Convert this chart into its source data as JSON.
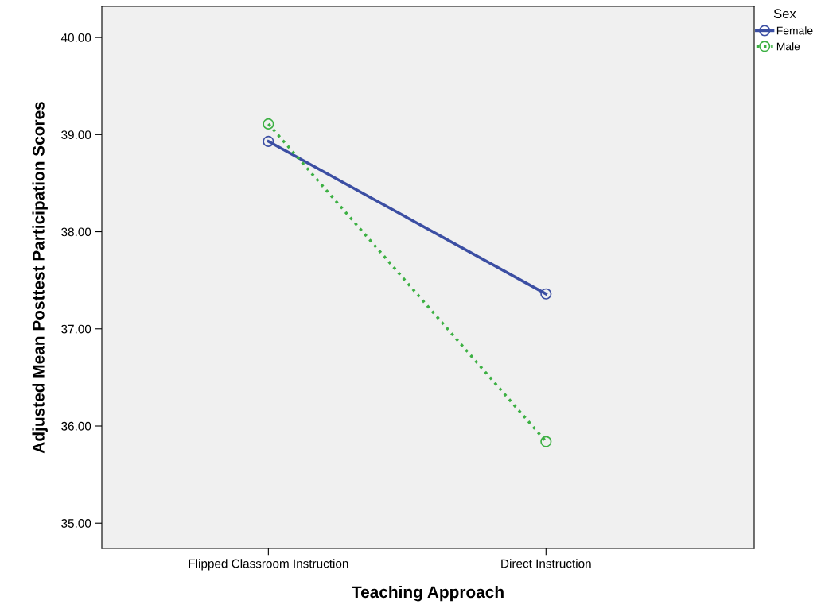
{
  "chart_data": {
    "type": "line",
    "xlabel": "Teaching Approach",
    "ylabel": "Adjusted Mean Posttest Participation Scores",
    "legend_title": "Sex",
    "categories": [
      "Flipped Classroom Instruction",
      "Direct Instruction"
    ],
    "ylim": [
      34.74,
      40.32
    ],
    "yticks": [
      {
        "value": 35,
        "label": "35.00"
      },
      {
        "value": 36,
        "label": "36.00"
      },
      {
        "value": 37,
        "label": "37.00"
      },
      {
        "value": 38,
        "label": "38.00"
      },
      {
        "value": 39,
        "label": "39.00"
      },
      {
        "value": 40,
        "label": "40.00"
      }
    ],
    "series": [
      {
        "name": "Female",
        "color": "#3b4ea3",
        "values": [
          38.93,
          37.36
        ],
        "line_style": "solid"
      },
      {
        "name": "Male",
        "color": "#3cb043",
        "values": [
          39.11,
          35.84
        ],
        "line_style": "dotted"
      }
    ],
    "marker": "circle",
    "grid": false,
    "legend": "top right"
  }
}
